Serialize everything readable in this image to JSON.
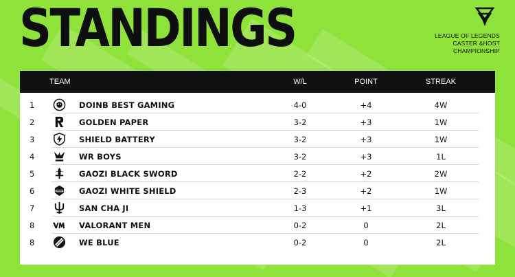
{
  "title": "STANDINGS",
  "brand": {
    "line1": "LEAGUE OF LEGENDS",
    "line2": "CASTER &HOST",
    "line3": "CHAMPIONSHIP"
  },
  "columns": {
    "team": "TEAM",
    "wl": "W/L",
    "point": "POINT",
    "streak": "STREAK"
  },
  "colors": {
    "background": "#8fe23a",
    "header": "#111111",
    "panel": "#ffffff"
  },
  "rows": [
    {
      "rank": "1",
      "team": "DOINB BEST GAMING",
      "wl": "4-0",
      "point": "+4",
      "streak": "4W",
      "icon": "doinb-best-gaming-logo-icon"
    },
    {
      "rank": "2",
      "team": "GOLDEN PAPER",
      "wl": "3-2",
      "point": "+3",
      "streak": "1W",
      "icon": "golden-paper-logo-icon"
    },
    {
      "rank": "3",
      "team": "SHIELD BATTERY",
      "wl": "3-2",
      "point": "+3",
      "streak": "1W",
      "icon": "shield-battery-logo-icon"
    },
    {
      "rank": "4",
      "team": "WR BOYS",
      "wl": "3-2",
      "point": "+3",
      "streak": "1L",
      "icon": "wr-boys-logo-icon"
    },
    {
      "rank": "5",
      "team": "GAOZI BLACK SWORD",
      "wl": "2-2",
      "point": "+2",
      "streak": "2W",
      "icon": "gaozi-black-sword-logo-icon"
    },
    {
      "rank": "6",
      "team": "GAOZI WHITE SHIELD",
      "wl": "2-3",
      "point": "+2",
      "streak": "1W",
      "icon": "gaozi-white-shield-logo-icon"
    },
    {
      "rank": "7",
      "team": "SAN CHA JI",
      "wl": "1-3",
      "point": "+1",
      "streak": "3L",
      "icon": "san-cha-ji-logo-icon"
    },
    {
      "rank": "8",
      "team": "VALORANT MEN",
      "wl": "0-2",
      "point": "0",
      "streak": "2L",
      "icon": "valorant-men-logo-icon"
    },
    {
      "rank": "8",
      "team": "WE BLUE",
      "wl": "0-2",
      "point": "0",
      "streak": "2L",
      "icon": "we-blue-logo-icon"
    }
  ]
}
